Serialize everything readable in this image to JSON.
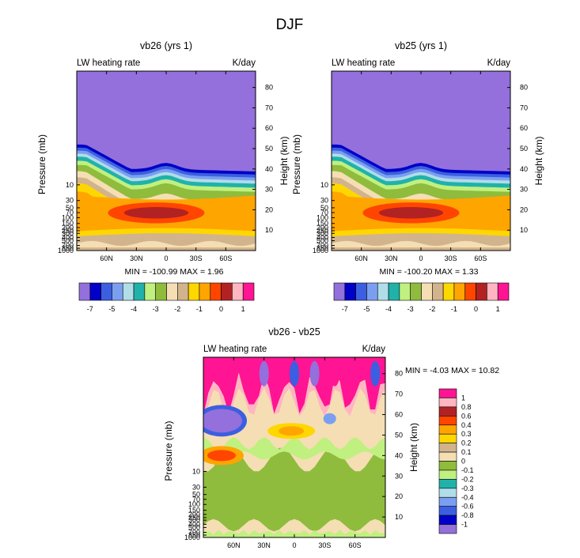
{
  "figure": {
    "title": "DJF"
  },
  "chart_data": [
    {
      "type": "heatmap",
      "title": "vb26 (yrs 1)",
      "left_label": "LW heating rate",
      "right_label": "K/day",
      "ylabel": "Pressure (mb)",
      "y2label": "Height (km)",
      "lat_ticks": [
        "60N",
        "30N",
        "0",
        "30S",
        "60S"
      ],
      "lat_values": [
        60,
        30,
        0,
        -30,
        -60
      ],
      "xlim": [
        90,
        -90
      ],
      "pressure_ticks": [
        "10",
        "30",
        "50",
        "70",
        "100",
        "150",
        "200",
        "250",
        "300",
        "400",
        "500",
        "700",
        "850",
        "1000"
      ],
      "pressure_values": [
        10,
        30,
        50,
        70,
        100,
        150,
        200,
        250,
        300,
        400,
        500,
        700,
        850,
        1000
      ],
      "height_ticks": [
        "10",
        "20",
        "30",
        "40",
        "50",
        "60",
        "70",
        "80"
      ],
      "height_values": [
        10,
        20,
        30,
        40,
        50,
        60,
        70,
        80
      ],
      "height_range_km": [
        0,
        88
      ],
      "stats_text": "MIN = -100.99  MAX =   1.96",
      "min": -100.99,
      "max": 1.96,
      "levels": [
        -7.5,
        -7,
        -6.5,
        -6,
        -5.5,
        -5,
        -4.5,
        -4,
        -3.5,
        -3,
        -2.5,
        -2,
        -1.5,
        -1,
        -0.5,
        0,
        0.5,
        1
      ],
      "colorbar_labels": [
        "-7",
        "-5",
        "-4",
        "-3",
        "-2",
        "-1",
        "0",
        "1"
      ],
      "colors": [
        "#9370db",
        "#0000c8",
        "#3b5fe0",
        "#7b9ff0",
        "#b0dde8",
        "#20b2aa",
        "#c0f080",
        "#8fbc3c",
        "#f5deb3",
        "#d2b48c",
        "#ffd700",
        "#ffa500",
        "#ff4500",
        "#b22222",
        "#ffb6c1",
        "#ff1493"
      ],
      "contour_bands": [
        {
          "label": "< -7.5",
          "top_km_at_90N_0_90S": [
            52,
            40,
            39
          ]
        },
        {
          "label": "-7 to -3",
          "top_km_at_90N_0_90S": [
            48,
            37,
            36
          ]
        },
        {
          "label": "-3 to -2",
          "top_km_at_90N_0_90S": [
            38,
            33,
            32
          ]
        },
        {
          "label": "-1.5 to -1",
          "top_km_at_90N_0_90S": [
            28,
            28,
            27
          ]
        },
        {
          "label": "-1 to -0.5 (max cooling core)",
          "center_lat": 10,
          "center_km": 19
        },
        {
          "label": "-2 to 0 near surface",
          "top_km_at_90N_0_90S": [
            10,
            8,
            10
          ]
        }
      ]
    },
    {
      "type": "heatmap",
      "title": "vb25 (yrs 1)",
      "left_label": "LW heating rate",
      "right_label": "K/day",
      "ylabel": "Pressure (mb)",
      "y2label": "Height (km)",
      "lat_ticks": [
        "60N",
        "30N",
        "0",
        "30S",
        "60S"
      ],
      "lat_values": [
        60,
        30,
        0,
        -30,
        -60
      ],
      "xlim": [
        90,
        -90
      ],
      "pressure_ticks": [
        "10",
        "30",
        "50",
        "70",
        "100",
        "150",
        "200",
        "250",
        "300",
        "400",
        "500",
        "700",
        "850",
        "1000"
      ],
      "pressure_values": [
        10,
        30,
        50,
        70,
        100,
        150,
        200,
        250,
        300,
        400,
        500,
        700,
        850,
        1000
      ],
      "height_ticks": [
        "10",
        "20",
        "30",
        "40",
        "50",
        "60",
        "70",
        "80"
      ],
      "height_values": [
        10,
        20,
        30,
        40,
        50,
        60,
        70,
        80
      ],
      "height_range_km": [
        0,
        88
      ],
      "stats_text": "MIN = -100.20  MAX =   1.33",
      "min": -100.2,
      "max": 1.33,
      "levels": [
        -7.5,
        -7,
        -6.5,
        -6,
        -5.5,
        -5,
        -4.5,
        -4,
        -3.5,
        -3,
        -2.5,
        -2,
        -1.5,
        -1,
        -0.5,
        0,
        0.5,
        1
      ],
      "colorbar_labels": [
        "-7",
        "-5",
        "-4",
        "-3",
        "-2",
        "-1",
        "0",
        "1"
      ],
      "colors": [
        "#9370db",
        "#0000c8",
        "#3b5fe0",
        "#7b9ff0",
        "#b0dde8",
        "#20b2aa",
        "#c0f080",
        "#8fbc3c",
        "#f5deb3",
        "#d2b48c",
        "#ffd700",
        "#ffa500",
        "#ff4500",
        "#b22222",
        "#ffb6c1",
        "#ff1493"
      ]
    },
    {
      "type": "heatmap",
      "title": "vb26 - vb25",
      "left_label": "LW heating rate",
      "right_label": "K/day",
      "ylabel": "Pressure (mb)",
      "y2label": "Height (km)",
      "lat_ticks": [
        "60N",
        "30N",
        "0",
        "30S",
        "60S"
      ],
      "lat_values": [
        60,
        30,
        0,
        -30,
        -60
      ],
      "xlim": [
        90,
        -90
      ],
      "pressure_ticks": [
        "10",
        "30",
        "50",
        "70",
        "100",
        "150",
        "200",
        "250",
        "300",
        "400",
        "500",
        "700",
        "850",
        "1000"
      ],
      "pressure_values": [
        10,
        30,
        50,
        70,
        100,
        150,
        200,
        250,
        300,
        400,
        500,
        700,
        850,
        1000
      ],
      "height_ticks": [
        "10",
        "20",
        "30",
        "40",
        "50",
        "60",
        "70",
        "80"
      ],
      "height_values": [
        10,
        20,
        30,
        40,
        50,
        60,
        70,
        80
      ],
      "height_range_km": [
        0,
        88
      ],
      "stats_text": "MIN =  -4.03  MAX =  10.82",
      "min": -4.03,
      "max": 10.82,
      "colorbar_labels": [
        "1",
        "0.8",
        "0.6",
        "0.4",
        "0.3",
        "0.2",
        "0.1",
        "0",
        "-0.1",
        "-0.2",
        "-0.3",
        "-0.4",
        "-0.6",
        "-0.8",
        "-1"
      ],
      "colorbar_values": [
        1,
        0.8,
        0.6,
        0.4,
        0.3,
        0.2,
        0.1,
        0,
        -0.1,
        -0.2,
        -0.3,
        -0.4,
        -0.6,
        -0.8,
        -1
      ],
      "colors": [
        "#ff1493",
        "#ffb6c1",
        "#b22222",
        "#ff4500",
        "#ffa500",
        "#ffd700",
        "#d2b48c",
        "#f5deb3",
        "#8fbc3c",
        "#c0f080",
        "#20b2aa",
        "#b0dde8",
        "#7b9ff0",
        "#3b5fe0",
        "#0000c8",
        "#9370db"
      ],
      "features": [
        {
          "label": "> 1 (upper mesosphere)",
          "lat_range": [
            90,
            -90
          ],
          "km_range": [
            70,
            88
          ]
        },
        {
          "label": "< -1 blob",
          "lat": 70,
          "km": 57
        },
        {
          "label": "0.4 to 0.6 blob",
          "lat": 70,
          "km": 40
        },
        {
          "label": "0.3 to 0.4 blob",
          "lat": 5,
          "km": 52
        },
        {
          "label": "-0.1 to 0 region",
          "lat_range": [
            90,
            -90
          ],
          "km_range": [
            3,
            40
          ]
        }
      ]
    }
  ]
}
